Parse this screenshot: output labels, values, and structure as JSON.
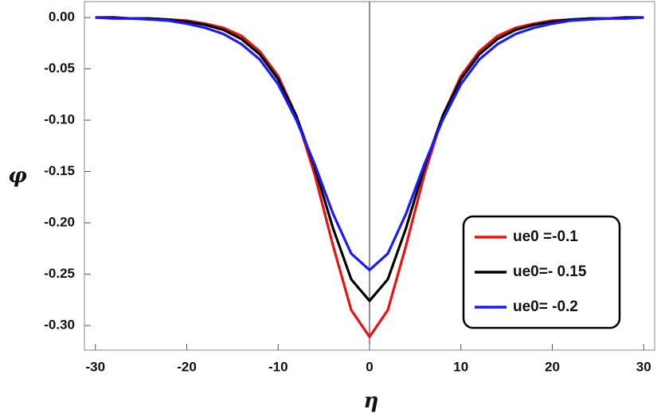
{
  "chart_data": {
    "type": "line",
    "x_label": "η",
    "y_label": "φ",
    "x": [
      -30,
      -28,
      -26,
      -24,
      -22,
      -20,
      -18,
      -16,
      -14,
      -12,
      -10,
      -8,
      -6,
      -4,
      -2,
      0,
      2,
      4,
      6,
      8,
      10,
      12,
      14,
      16,
      18,
      20,
      22,
      24,
      26,
      28,
      30
    ],
    "series": [
      {
        "name": "ue0 =-0.1",
        "color": "#ee1111",
        "values": [
          0,
          0,
          -0.001,
          -0.001,
          -0.002,
          -0.003,
          -0.006,
          -0.01,
          -0.018,
          -0.033,
          -0.057,
          -0.096,
          -0.153,
          -0.222,
          -0.285,
          -0.311,
          -0.285,
          -0.222,
          -0.153,
          -0.096,
          -0.057,
          -0.033,
          -0.018,
          -0.01,
          -0.006,
          -0.003,
          -0.002,
          -0.001,
          -0.001,
          0,
          0
        ]
      },
      {
        "name": "ue0=- 0.15",
        "color": "#000000",
        "values": [
          0,
          0,
          -0.001,
          -0.001,
          -0.002,
          -0.004,
          -0.007,
          -0.012,
          -0.021,
          -0.036,
          -0.06,
          -0.096,
          -0.146,
          -0.205,
          -0.255,
          -0.276,
          -0.255,
          -0.205,
          -0.146,
          -0.096,
          -0.06,
          -0.036,
          -0.021,
          -0.012,
          -0.007,
          -0.004,
          -0.002,
          -0.001,
          -0.001,
          0,
          0
        ]
      },
      {
        "name": "ue0= -0.2",
        "color": "#1a1aff",
        "values": [
          0,
          -0.001,
          -0.001,
          -0.002,
          -0.003,
          -0.006,
          -0.01,
          -0.016,
          -0.026,
          -0.041,
          -0.065,
          -0.1,
          -0.143,
          -0.191,
          -0.23,
          -0.246,
          -0.23,
          -0.191,
          -0.143,
          -0.1,
          -0.065,
          -0.041,
          -0.026,
          -0.016,
          -0.01,
          -0.006,
          -0.003,
          -0.002,
          -0.001,
          -0.001,
          0
        ]
      }
    ],
    "xlim": [
      -31.2,
      31.2
    ],
    "ylim": [
      -0.324,
      0.0155
    ],
    "xticks": [
      -30,
      -20,
      -10,
      0,
      10,
      20,
      30
    ],
    "yticks": [
      {
        "value": 0,
        "label": "0.00"
      },
      {
        "value": -0.05,
        "label": "-0.05"
      },
      {
        "value": -0.1,
        "label": "-0.10"
      },
      {
        "value": -0.15,
        "label": "-0.15"
      },
      {
        "value": -0.2,
        "label": "-0.20"
      },
      {
        "value": -0.25,
        "label": "-0.25"
      },
      {
        "value": -0.3,
        "label": "-0.30"
      }
    ],
    "legend": "lower-right",
    "grid": false
  }
}
